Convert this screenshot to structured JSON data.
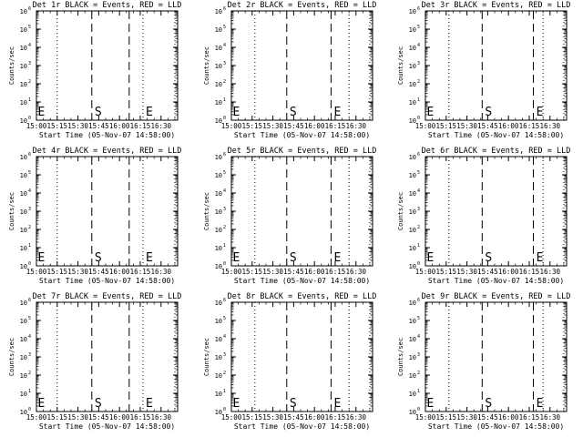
{
  "chart_data": {
    "type": "line",
    "shared": {
      "xlabel": "Start Time (05-Nov-07 14:58:00)",
      "ylabel": "Counts/sec",
      "x_ticks": [
        "15:00",
        "15:15",
        "15:30",
        "15:45",
        "16:00",
        "16:15",
        "16:30"
      ],
      "x_tick_minutes": [
        0,
        15,
        30,
        45,
        60,
        75,
        90
      ],
      "xlim_minutes": [
        0,
        102
      ],
      "ylim_log10": [
        0,
        6
      ],
      "y_ticks_log10": [
        0,
        1,
        2,
        3,
        4,
        5,
        6
      ],
      "y_tick_base": "10",
      "y_tick_exponents": [
        "0",
        "1",
        "2",
        "3",
        "4",
        "5",
        "6"
      ],
      "series": [
        {
          "name": "Events",
          "color": "#000000",
          "values": []
        },
        {
          "name": "LLD",
          "color": "#ff0000",
          "values": []
        }
      ]
    },
    "panels": [
      {
        "title": "Det 1r BLACK = Events, RED = LLD",
        "dotted_lines": [
          0,
          15,
          77,
          100
        ],
        "dashed_lines": [
          40,
          67
        ],
        "markers": [
          {
            "text": "E",
            "x": 1
          },
          {
            "text": "S",
            "x": 42
          },
          {
            "text": "E",
            "x": 79
          }
        ]
      },
      {
        "title": "Det 2r BLACK = Events, RED = LLD",
        "dotted_lines": [
          0,
          17,
          85,
          100
        ],
        "dashed_lines": [
          40,
          72
        ],
        "markers": [
          {
            "text": "E",
            "x": 1
          },
          {
            "text": "S",
            "x": 42
          },
          {
            "text": "E",
            "x": 74
          }
        ]
      },
      {
        "title": "Det 3r BLACK = Events, RED = LLD",
        "dotted_lines": [
          0,
          17,
          85,
          100
        ],
        "dashed_lines": [
          41,
          78
        ],
        "markers": [
          {
            "text": "E",
            "x": 1
          },
          {
            "text": "S",
            "x": 43
          },
          {
            "text": "E",
            "x": 80
          }
        ]
      },
      {
        "title": "Det 4r BLACK = Events, RED = LLD",
        "dotted_lines": [
          0,
          15,
          77,
          100
        ],
        "dashed_lines": [
          40,
          67
        ],
        "markers": [
          {
            "text": "E",
            "x": 1
          },
          {
            "text": "S",
            "x": 42
          },
          {
            "text": "E",
            "x": 79
          }
        ]
      },
      {
        "title": "Det 5r BLACK = Events, RED = LLD",
        "dotted_lines": [
          0,
          17,
          85,
          100
        ],
        "dashed_lines": [
          40,
          72
        ],
        "markers": [
          {
            "text": "E",
            "x": 1
          },
          {
            "text": "S",
            "x": 42
          },
          {
            "text": "E",
            "x": 74
          }
        ]
      },
      {
        "title": "Det 6r BLACK = Events, RED = LLD",
        "dotted_lines": [
          0,
          17,
          85,
          100
        ],
        "dashed_lines": [
          41,
          78
        ],
        "markers": [
          {
            "text": "E",
            "x": 1
          },
          {
            "text": "S",
            "x": 43
          },
          {
            "text": "E",
            "x": 80
          }
        ]
      },
      {
        "title": "Det 7r BLACK = Events, RED = LLD",
        "dotted_lines": [
          0,
          15,
          77,
          100
        ],
        "dashed_lines": [
          40,
          67
        ],
        "markers": [
          {
            "text": "E",
            "x": 1
          },
          {
            "text": "S",
            "x": 42
          },
          {
            "text": "E",
            "x": 79
          }
        ]
      },
      {
        "title": "Det 8r BLACK = Events, RED = LLD",
        "dotted_lines": [
          0,
          17,
          85,
          100
        ],
        "dashed_lines": [
          40,
          72
        ],
        "markers": [
          {
            "text": "E",
            "x": 1
          },
          {
            "text": "S",
            "x": 42
          },
          {
            "text": "E",
            "x": 74
          }
        ]
      },
      {
        "title": "Det 9r BLACK = Events, RED = LLD",
        "dotted_lines": [
          0,
          17,
          85,
          100
        ],
        "dashed_lines": [
          41,
          78
        ],
        "markers": [
          {
            "text": "E",
            "x": 1
          },
          {
            "text": "S",
            "x": 43
          },
          {
            "text": "E",
            "x": 80
          }
        ]
      }
    ]
  }
}
